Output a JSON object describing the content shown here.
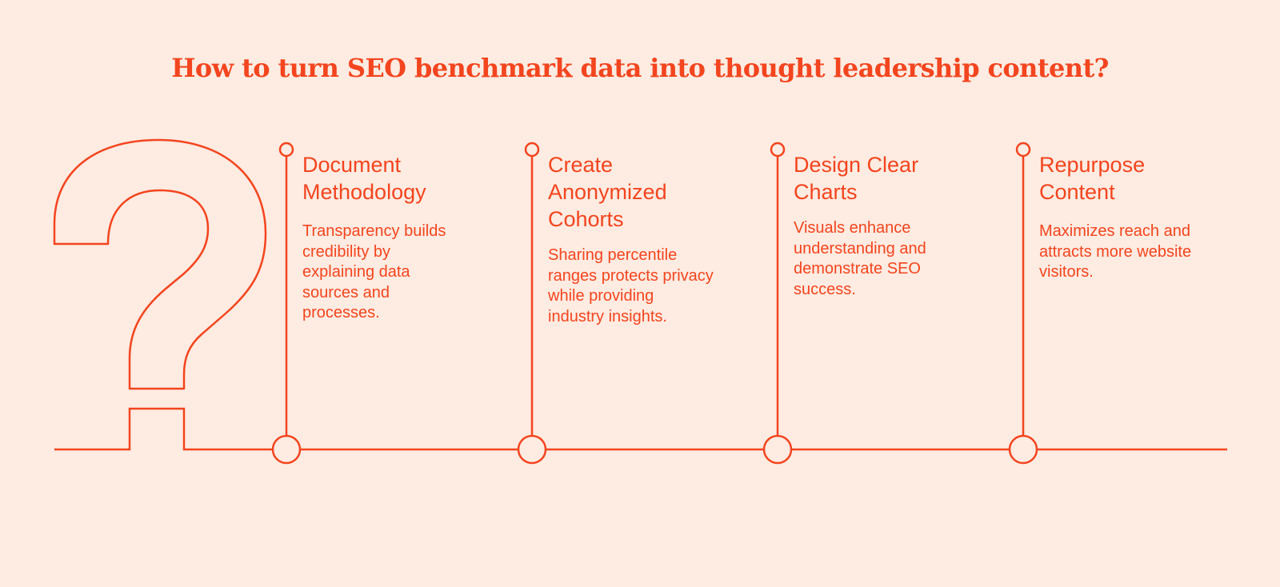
{
  "title": "How to turn SEO benchmark data into thought leadership content?",
  "accent_color": "#f3451f",
  "background_color": "#feebe1",
  "steps": [
    {
      "title": "Document\nMethodology",
      "description": "Transparency builds\ncredibility by\nexplaining data\nsources and\nprocesses."
    },
    {
      "title": "Create\nAnonymized\nCohorts",
      "description": "Sharing percentile\nranges protects privacy\nwhile providing\nindustry insights."
    },
    {
      "title": "Design Clear\nCharts",
      "description": "Visuals enhance\nunderstanding and\ndemonstrate SEO\nsuccess."
    },
    {
      "title": "Repurpose\nContent",
      "description": "Maximizes reach and\nattracts more website\nvisitors."
    }
  ]
}
